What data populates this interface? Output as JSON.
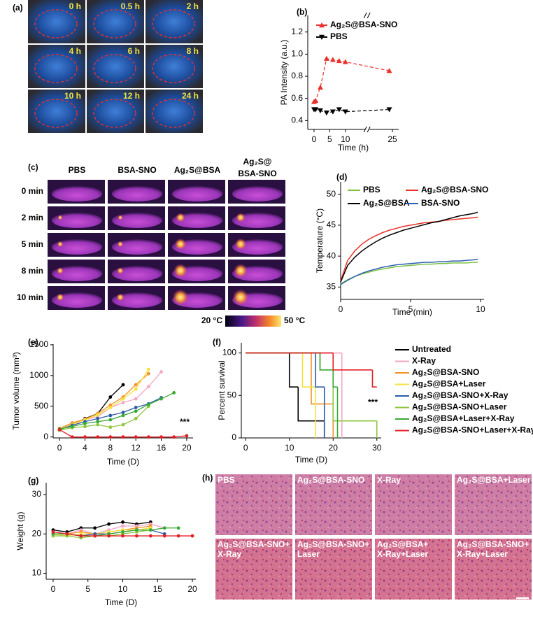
{
  "chart_data": [
    {
      "type": "line",
      "label": "(b)",
      "xlabel": "Time (h)",
      "ylabel": "PA Intensity (a.u.)",
      "x": [
        0,
        0.5,
        2,
        4,
        6,
        8,
        10,
        24
      ],
      "series": [
        {
          "name": "Ag₂S@BSA-SNO",
          "color": "#e8312a",
          "marker": "triangle-up",
          "values": [
            0.57,
            0.58,
            0.7,
            0.96,
            0.95,
            0.94,
            0.93,
            0.85
          ]
        },
        {
          "name": "PBS",
          "color": "#000000",
          "marker": "triangle-down",
          "values": [
            0.5,
            0.5,
            0.49,
            0.47,
            0.48,
            0.5,
            0.48,
            0.5
          ]
        }
      ],
      "xlim": [
        -2,
        27
      ],
      "xticks": [
        0,
        5,
        10,
        25
      ],
      "ylim": [
        0.32,
        1.35
      ],
      "yticks": [
        0.4,
        0.6,
        0.8,
        {
          "value": 1,
          "label": "1.0"
        },
        1.2
      ]
    },
    {
      "type": "line",
      "label": "(d)",
      "xlabel": "Time (min)",
      "ylabel": "Temperature (°C)",
      "x": [
        0,
        0.5,
        1,
        1.5,
        2,
        2.5,
        3,
        3.5,
        4,
        4.5,
        5,
        5.5,
        6,
        6.5,
        7,
        7.5,
        8,
        8.5,
        9,
        9.5,
        9.8
      ],
      "series": [
        {
          "name": "PBS",
          "color": "#7cc242",
          "values": [
            35.5,
            36.2,
            36.7,
            37.1,
            37.4,
            37.7,
            37.9,
            38.1,
            38.3,
            38.4,
            38.5,
            38.6,
            38.7,
            38.7,
            38.8,
            38.8,
            38.9,
            38.9,
            38.9,
            39.0,
            39.0
          ]
        },
        {
          "name": "Ag₂S@BSA-SNO",
          "color": "#e8312a",
          "values": [
            36.0,
            39.3,
            40.8,
            41.9,
            42.7,
            43.3,
            43.8,
            44.2,
            44.5,
            44.8,
            45.0,
            45.2,
            45.4,
            45.5,
            45.6,
            45.8,
            45.9,
            46.0,
            46.1,
            46.2,
            46.3
          ]
        },
        {
          "name": "Ag₂S@BSA",
          "color": "#000000",
          "values": [
            35.8,
            38.5,
            39.8,
            40.8,
            41.6,
            42.3,
            42.9,
            43.4,
            43.8,
            44.2,
            44.5,
            44.8,
            45.1,
            45.4,
            45.6,
            45.9,
            46.2,
            46.5,
            46.7,
            46.9,
            47.1
          ]
        },
        {
          "name": "BSA-SNO",
          "color": "#2c5fb3",
          "values": [
            35.4,
            36.1,
            36.7,
            37.2,
            37.6,
            37.9,
            38.2,
            38.4,
            38.6,
            38.7,
            38.8,
            38.9,
            39.0,
            39.0,
            39.1,
            39.1,
            39.2,
            39.2,
            39.3,
            39.4,
            39.5
          ]
        }
      ],
      "xlim": [
        0,
        10.25
      ],
      "xticks": [
        0,
        5,
        10
      ],
      "ylim": [
        33,
        52
      ],
      "yticks": [
        35,
        40,
        45,
        50
      ]
    },
    {
      "type": "line",
      "label": "(e)",
      "xlabel": "Time (D)",
      "ylabel": "Tumor volume (mm³)",
      "markers": true,
      "annotation": "***",
      "x": [
        0,
        2,
        4,
        6,
        8,
        10,
        12,
        14,
        16,
        18,
        20
      ],
      "series": [
        {
          "color": "#000000",
          "values": [
            120,
            200,
            300,
            380,
            650,
            850,
            null,
            null,
            null,
            null,
            null
          ]
        },
        {
          "color": "#f4a6c6",
          "values": [
            130,
            210,
            280,
            330,
            480,
            560,
            620,
            820,
            1060,
            null,
            null
          ]
        },
        {
          "color": "#f39325",
          "values": [
            140,
            230,
            290,
            380,
            520,
            650,
            850,
            1030,
            null,
            null,
            null
          ]
        },
        {
          "color": "#f5e23c",
          "values": [
            130,
            200,
            280,
            360,
            480,
            620,
            780,
            1100,
            null,
            null,
            null
          ]
        },
        {
          "color": "#2b5ba8",
          "values": [
            120,
            190,
            250,
            300,
            350,
            400,
            480,
            540,
            640,
            null,
            null
          ]
        },
        {
          "color": "#8dc63f",
          "values": [
            110,
            150,
            170,
            200,
            160,
            200,
            300,
            500,
            null,
            null,
            null
          ]
        },
        {
          "color": "#39a935",
          "values": [
            130,
            170,
            220,
            250,
            280,
            350,
            420,
            530,
            620,
            720,
            null
          ]
        },
        {
          "color": "#e31e24",
          "values": [
            120,
            0,
            0,
            0,
            0,
            0,
            0,
            0,
            0,
            0,
            20
          ]
        }
      ],
      "xlim": [
        -1,
        21
      ],
      "xticks": [
        0,
        4,
        8,
        12,
        16,
        20
      ],
      "ylim": [
        -15,
        1510
      ],
      "yticks": [
        0,
        500,
        1000,
        1500
      ]
    },
    {
      "type": "step",
      "label": "(f)",
      "xlabel": "Time (D)",
      "ylabel": "Percent survival",
      "annotation": "***",
      "series": [
        {
          "name": "Untreated",
          "color": "#000000",
          "x": [
            0,
            10,
            12,
            18
          ],
          "values": [
            100,
            60,
            20,
            0
          ]
        },
        {
          "name": "X-Ray",
          "color": "#f4a6c6",
          "x": [
            0,
            22
          ],
          "values": [
            100,
            0
          ]
        },
        {
          "name": "Ag₂S@BSA-SNO",
          "color": "#f39325",
          "x": [
            0,
            15,
            20
          ],
          "values": [
            100,
            40,
            0
          ]
        },
        {
          "name": "Ag₂S@BSA+Laser",
          "color": "#f5e23c",
          "x": [
            0,
            13,
            16
          ],
          "values": [
            100,
            60,
            0
          ]
        },
        {
          "name": "Ag₂S@BSA-SNO+X-Ray",
          "color": "#2b5ba8",
          "x": [
            0,
            16,
            18
          ],
          "values": [
            100,
            60,
            0
          ]
        },
        {
          "name": "Ag₂S@BSA-SNO+Laser",
          "color": "#8dc63f",
          "x": [
            0,
            17,
            20,
            30
          ],
          "values": [
            100,
            80,
            20,
            0
          ]
        },
        {
          "name": "Ag₂S@BSA+Laser+X-Ray",
          "color": "#39a935",
          "x": [
            0,
            17,
            20,
            21
          ],
          "values": [
            100,
            80,
            60,
            0
          ]
        },
        {
          "name": "Ag₂S@BSA-SNO+Laser+X-Ray",
          "color": "#e31e24",
          "x": [
            0,
            20,
            29,
            30
          ],
          "values": [
            100,
            80,
            60,
            60
          ]
        }
      ],
      "xlim": [
        -1,
        31
      ],
      "xticks": [
        0,
        10,
        20,
        30
      ],
      "ylim": [
        0,
        112
      ],
      "yticks": [
        0,
        50,
        100
      ]
    },
    {
      "type": "line",
      "label": "(g)",
      "xlabel": "Time (D)",
      "ylabel": "Weight (g)",
      "markers": true,
      "x": [
        0,
        2,
        4,
        6,
        8,
        10,
        12,
        14,
        16,
        18,
        20
      ],
      "series": [
        {
          "color": "#000000",
          "values": [
            21,
            20.5,
            21.5,
            21.5,
            22.5,
            23,
            22.5,
            23,
            null,
            null,
            null
          ]
        },
        {
          "color": "#f4a6c6",
          "values": [
            20.5,
            20,
            21,
            20,
            21,
            22,
            22,
            22.5,
            21.5,
            null,
            null
          ]
        },
        {
          "color": "#f39325",
          "values": [
            20,
            20,
            20.5,
            20,
            20.5,
            21,
            21.5,
            22,
            null,
            null,
            null
          ]
        },
        {
          "color": "#f5e23c",
          "values": [
            20,
            19.5,
            20,
            20,
            20.5,
            21,
            21,
            21.5,
            null,
            null,
            null
          ]
        },
        {
          "color": "#2b5ba8",
          "values": [
            20,
            20,
            19.5,
            20,
            20,
            20.5,
            21,
            21,
            20,
            null,
            null
          ]
        },
        {
          "color": "#8dc63f",
          "values": [
            19.5,
            19.5,
            19,
            19.5,
            19.5,
            20,
            20.5,
            21,
            null,
            null,
            null
          ]
        },
        {
          "color": "#39a935",
          "values": [
            20,
            20,
            19.5,
            19.5,
            20,
            20.5,
            21,
            21,
            21.5,
            21.5,
            null
          ]
        },
        {
          "color": "#e31e24",
          "values": [
            20.5,
            20,
            19.5,
            19.5,
            19.5,
            19.5,
            19.5,
            19.5,
            19.5,
            19.5,
            19.5
          ]
        }
      ],
      "xlim": [
        -1,
        20.5
      ],
      "xticks": [
        0,
        5,
        10,
        15,
        20
      ],
      "ylim": [
        8.5,
        33
      ],
      "yticks": [
        10,
        20,
        30
      ]
    }
  ],
  "panel_a": {
    "label": "(a)",
    "frames": [
      "0 h",
      "0.5 h",
      "2 h",
      "4 h",
      "6 h",
      "8 h",
      "10 h",
      "12 h",
      "24 h"
    ]
  },
  "panel_c": {
    "label": "(c)",
    "columns": [
      [
        "PBS"
      ],
      [
        "BSA-SNO"
      ],
      [
        "Ag₂S@BSA"
      ],
      [
        "Ag₂S@",
        "BSA-SNO"
      ]
    ],
    "rows": [
      "0 min",
      "2 min",
      "5 min",
      "8 min",
      "10 min"
    ],
    "colorbar": [
      "20 °C",
      "50 °C"
    ]
  },
  "panel_h": {
    "label": "(h)",
    "tiles": [
      [
        "PBS"
      ],
      [
        "Ag₂S@BSA-SNO"
      ],
      [
        "X-Ray"
      ],
      [
        "Ag₂S@BSA+Laser"
      ],
      [
        "Ag₂S@BSA-SNO+",
        "X-Ray"
      ],
      [
        "Ag₂S@BSA-SNO+",
        "Laser"
      ],
      [
        "Ag₂S@BSA+",
        "X-Ray+Laser"
      ],
      [
        "Ag₂S@BSA-SNO+",
        "X-Ray+Laser"
      ]
    ]
  }
}
